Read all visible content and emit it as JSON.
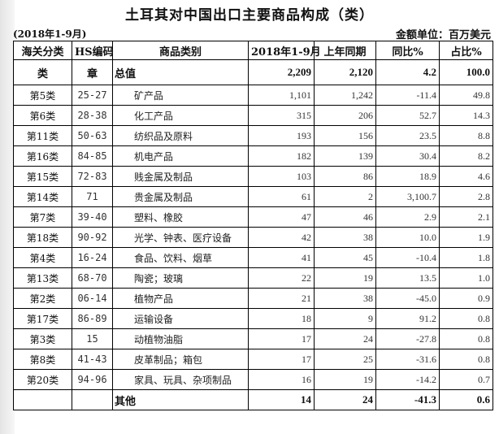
{
  "title": "土耳其对中国出口主要商品构成（类）",
  "period": "(2018年1-9月)",
  "unit": "金额单位：百万美元",
  "headers": [
    "海关分类",
    "HS编码",
    "商品类别",
    "2018年1-9月",
    "上年同期",
    "同比%",
    "占比%"
  ],
  "total": {
    "cls": "类",
    "hs": "章",
    "name": "总值",
    "cur": "2,209",
    "prev": "2,120",
    "yoy": "4.2",
    "share": "100.0"
  },
  "rows": [
    {
      "cls": "第5类",
      "hs": "25-27",
      "name": "矿产品",
      "cur": "1,101",
      "prev": "1,242",
      "yoy": "-11.4",
      "share": "49.8"
    },
    {
      "cls": "第6类",
      "hs": "28-38",
      "name": "化工产品",
      "cur": "315",
      "prev": "206",
      "yoy": "52.7",
      "share": "14.3"
    },
    {
      "cls": "第11类",
      "hs": "50-63",
      "name": "纺织品及原料",
      "cur": "193",
      "prev": "156",
      "yoy": "23.5",
      "share": "8.8"
    },
    {
      "cls": "第16类",
      "hs": "84-85",
      "name": "机电产品",
      "cur": "182",
      "prev": "139",
      "yoy": "30.4",
      "share": "8.2"
    },
    {
      "cls": "第15类",
      "hs": "72-83",
      "name": "贱金属及制品",
      "cur": "103",
      "prev": "86",
      "yoy": "18.9",
      "share": "4.6"
    },
    {
      "cls": "第14类",
      "hs": "71",
      "name": "贵金属及制品",
      "cur": "61",
      "prev": "2",
      "yoy": "3,100.7",
      "share": "2.8"
    },
    {
      "cls": "第7类",
      "hs": "39-40",
      "name": "塑料、橡胶",
      "cur": "47",
      "prev": "46",
      "yoy": "2.9",
      "share": "2.1"
    },
    {
      "cls": "第18类",
      "hs": "90-92",
      "name": "光学、钟表、医疗设备",
      "cur": "42",
      "prev": "38",
      "yoy": "10.0",
      "share": "1.9"
    },
    {
      "cls": "第4类",
      "hs": "16-24",
      "name": "食品、饮料、烟草",
      "cur": "41",
      "prev": "45",
      "yoy": "-10.4",
      "share": "1.8"
    },
    {
      "cls": "第13类",
      "hs": "68-70",
      "name": "陶瓷；玻璃",
      "cur": "22",
      "prev": "19",
      "yoy": "13.5",
      "share": "1.0"
    },
    {
      "cls": "第2类",
      "hs": "06-14",
      "name": "植物产品",
      "cur": "21",
      "prev": "38",
      "yoy": "-45.0",
      "share": "0.9"
    },
    {
      "cls": "第17类",
      "hs": "86-89",
      "name": "运输设备",
      "cur": "18",
      "prev": "9",
      "yoy": "91.2",
      "share": "0.8"
    },
    {
      "cls": "第3类",
      "hs": "15",
      "name": "动植物油脂",
      "cur": "17",
      "prev": "24",
      "yoy": "-27.8",
      "share": "0.8"
    },
    {
      "cls": "第8类",
      "hs": "41-43",
      "name": "皮革制品；箱包",
      "cur": "17",
      "prev": "25",
      "yoy": "-31.6",
      "share": "0.8"
    },
    {
      "cls": "第20类",
      "hs": "94-96",
      "name": "家具、玩具、杂项制品",
      "cur": "16",
      "prev": "19",
      "yoy": "-14.2",
      "share": "0.7"
    }
  ],
  "other": {
    "cls": "",
    "hs": "",
    "name": "其他",
    "cur": "14",
    "prev": "24",
    "yoy": "-41.3",
    "share": "0.6"
  }
}
